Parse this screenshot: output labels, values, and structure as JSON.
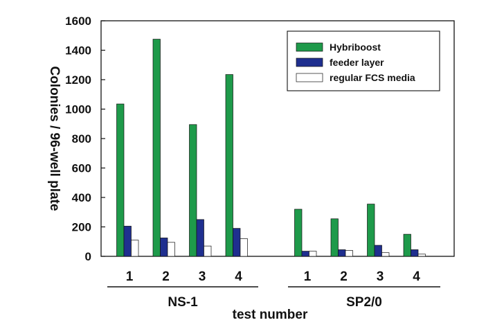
{
  "chart_data": {
    "type": "bar",
    "ylabel": "Colonies / 96-well plate",
    "xlabel": "test number",
    "ylim": [
      0,
      1600
    ],
    "yticks": [
      "0",
      "200",
      "400",
      "600",
      "800",
      "1000",
      "1200",
      "1400",
      "1600"
    ],
    "groups": [
      {
        "name": "NS-1",
        "categories": [
          "1",
          "2",
          "3",
          "4"
        ]
      },
      {
        "name": "SP2/0",
        "categories": [
          "1",
          "2",
          "3",
          "4"
        ]
      }
    ],
    "series": [
      {
        "name": "Hybriboost",
        "color": "#1e9a4a",
        "values": [
          1035,
          1475,
          895,
          1235,
          320,
          255,
          355,
          150
        ]
      },
      {
        "name": "feeder layer",
        "color": "#1f2f8f",
        "values": [
          205,
          125,
          250,
          190,
          35,
          45,
          75,
          45
        ]
      },
      {
        "name": "regular FCS media",
        "color": "#ffffff",
        "values": [
          110,
          95,
          70,
          120,
          35,
          40,
          25,
          15
        ]
      }
    ],
    "legend": {
      "position": "top-right"
    },
    "grid": false
  }
}
